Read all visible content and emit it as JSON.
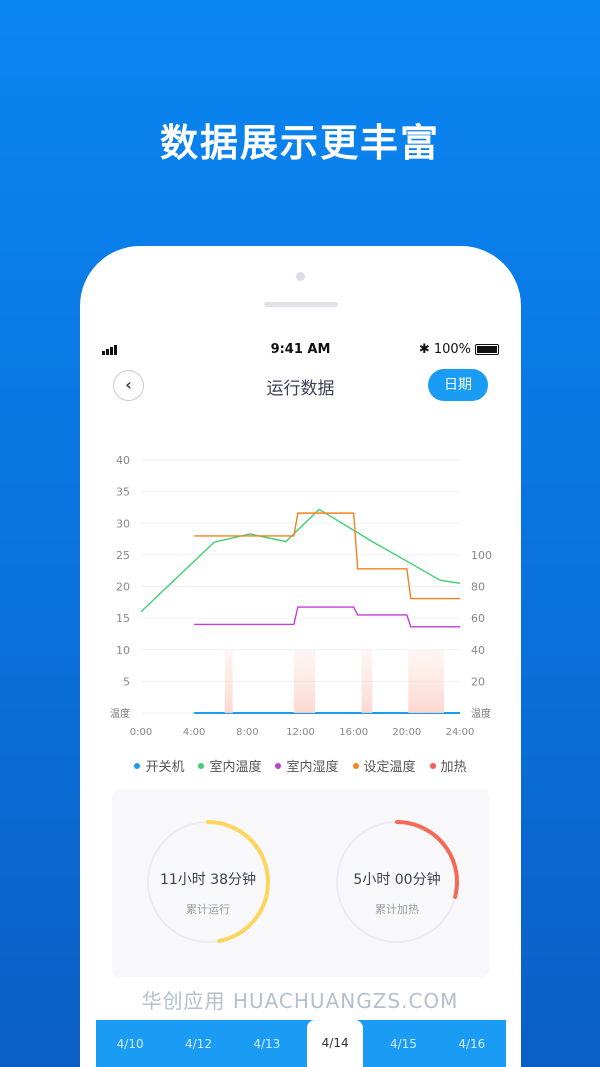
{
  "headline": "数据展示更丰富",
  "status": {
    "time": "9:41 AM",
    "battery": "100%",
    "icons": [
      "signal-icon",
      "bluetooth-icon",
      "battery-icon"
    ]
  },
  "nav": {
    "back_icon": "chevron-left-icon",
    "title": "运行数据",
    "date_button": "日期"
  },
  "chart_data": {
    "type": "line",
    "x_ticks": [
      "0:00",
      "4:00",
      "8:00",
      "12:00",
      "16:00",
      "20:00",
      "24:00"
    ],
    "xlim": [
      0,
      24
    ],
    "y_left": {
      "ticks": [
        "5",
        "10",
        "15",
        "20",
        "25",
        "30",
        "35",
        "40"
      ],
      "label": "温度",
      "ylim": [
        0,
        40
      ]
    },
    "y_right": {
      "ticks": [
        "20",
        "40",
        "60",
        "80",
        "100"
      ],
      "label": "温度",
      "ylim": [
        0,
        160
      ]
    },
    "grid": true,
    "legend_position": "bottom",
    "series": [
      {
        "name": "开关机",
        "color": "#1a9cf5",
        "axis": "left",
        "points": [
          [
            4,
            0
          ],
          [
            24,
            0
          ]
        ]
      },
      {
        "name": "室内温度",
        "color": "#3ecf6e",
        "axis": "left",
        "points": [
          [
            0,
            16
          ],
          [
            5.5,
            27
          ],
          [
            8.2,
            28.3
          ],
          [
            10.9,
            27.1
          ],
          [
            13.4,
            32.2
          ],
          [
            17.4,
            27.1
          ],
          [
            20,
            24
          ],
          [
            22.5,
            21
          ],
          [
            24,
            20.5
          ]
        ]
      },
      {
        "name": "室内湿度",
        "color": "#c13fd8",
        "axis": "right",
        "points": [
          [
            4,
            56
          ],
          [
            11.5,
            56
          ],
          [
            11.8,
            67
          ],
          [
            16,
            67
          ],
          [
            16.3,
            62
          ],
          [
            20,
            62
          ],
          [
            20.3,
            54.5
          ],
          [
            24,
            54.5
          ]
        ]
      },
      {
        "name": "设定温度",
        "color": "#f5821f",
        "axis": "left",
        "points": [
          [
            4,
            28
          ],
          [
            11.5,
            28
          ],
          [
            11.8,
            31.6
          ],
          [
            16,
            31.6
          ],
          [
            16.3,
            22.8
          ],
          [
            20,
            22.8
          ],
          [
            20.3,
            18.1
          ],
          [
            24,
            18.1
          ]
        ]
      },
      {
        "name": "加热",
        "color": "#f45b5b",
        "type": "bands",
        "bands": [
          [
            6.3,
            6.9
          ],
          [
            11.5,
            13.1
          ],
          [
            16.6,
            17.4
          ],
          [
            20.1,
            22.8
          ]
        ]
      }
    ]
  },
  "stats": [
    {
      "value": "11小时 38分钟",
      "label": "累计运行",
      "progress": 0.47,
      "color": "#fdd55c"
    },
    {
      "value": "5小时 00分钟",
      "label": "累计加热",
      "progress": 0.29,
      "color": "#f56a55"
    }
  ],
  "dates": [
    "4/10",
    "4/12",
    "4/13",
    "4/14",
    "4/15",
    "4/16"
  ],
  "selected_date": "4/14",
  "watermark": "华创应用 HUACHUANGZS.COM"
}
